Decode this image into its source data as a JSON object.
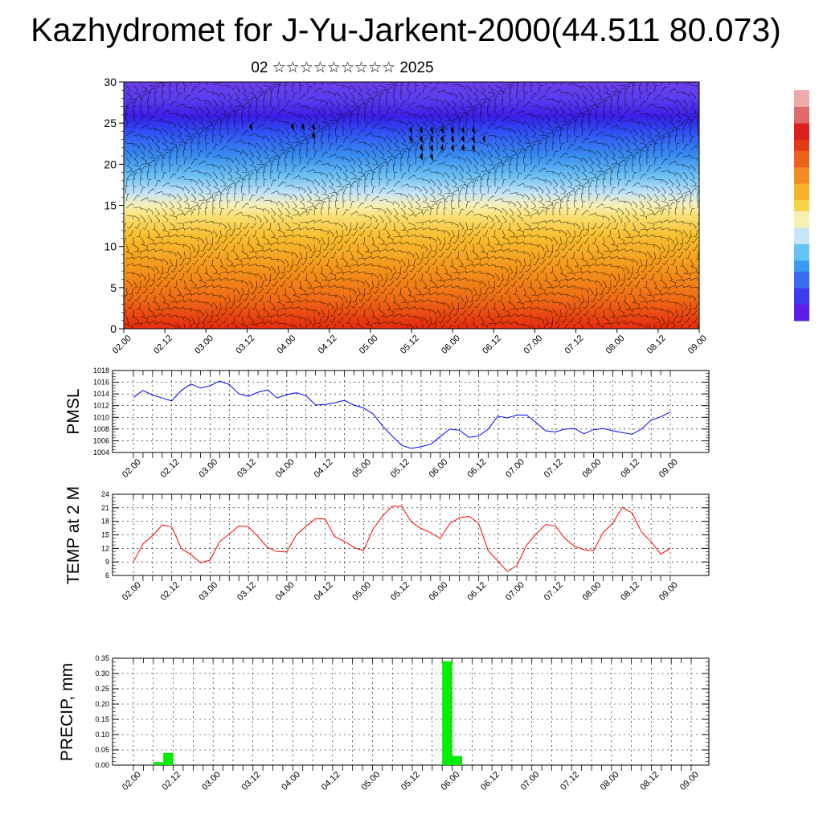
{
  "title": "Kazhydromet for J-Yu-Jarkent-2000(44.511 80.073)",
  "subtitle": "02 ☆☆☆☆☆☆☆☆☆ 2025",
  "time_ticks": [
    "02.00",
    "02.12",
    "03.00",
    "03.12",
    "04.00",
    "04.12",
    "05.00",
    "05.12",
    "06.00",
    "06.12",
    "07.00",
    "07.12",
    "08.00",
    "08.12",
    "09.00"
  ],
  "colorbar": {
    "colors_bottom_to_top": [
      "#5a1ee8",
      "#4a3cf0",
      "#3c63f2",
      "#3a8cf0",
      "#36aef0",
      "#7fd0f4",
      "#c8e8f8",
      "#f5f0a0",
      "#f8d84a",
      "#f6b92a",
      "#f39623",
      "#ee6f1c",
      "#e84a18",
      "#dc2020",
      "#e88a8a"
    ]
  },
  "chart_data": [
    {
      "type": "heatmap",
      "title": "",
      "ylim": [
        0,
        30
      ],
      "yticks": [
        0,
        5,
        10,
        15,
        20,
        25,
        30
      ],
      "xticks": [
        "02.00",
        "02.12",
        "03.00",
        "03.12",
        "04.00",
        "04.12",
        "05.00",
        "05.12",
        "06.00",
        "06.12",
        "07.00",
        "07.12",
        "08.00",
        "08.12",
        "09.00"
      ],
      "description_of_field": "temperature-like field, warm (red/orange) near level 0, yellow near 14-16, blue/purple above 20, with wind barbs"
    },
    {
      "type": "line",
      "ylabel": "PMSL",
      "ylim": [
        1004,
        1018
      ],
      "yticks": [
        1004,
        1006,
        1008,
        1010,
        1012,
        1014,
        1016,
        1018
      ],
      "x": [
        "02.00",
        "02.03",
        "02.06",
        "02.09",
        "02.12",
        "02.15",
        "02.18",
        "02.21",
        "03.00",
        "03.03",
        "03.06",
        "03.09",
        "03.12",
        "03.15",
        "03.18",
        "03.21",
        "04.00",
        "04.03",
        "04.06",
        "04.09",
        "04.12",
        "04.15",
        "04.18",
        "04.21",
        "05.00",
        "05.03",
        "05.06",
        "05.09",
        "05.12",
        "05.15",
        "05.18",
        "05.21",
        "06.00",
        "06.03",
        "06.06",
        "06.09",
        "06.12",
        "06.15",
        "06.18",
        "06.21",
        "07.00",
        "07.03",
        "07.06",
        "07.09",
        "07.12",
        "07.15",
        "07.18",
        "07.21",
        "08.00",
        "08.03",
        "08.06",
        "08.09",
        "08.12",
        "08.15",
        "08.18",
        "08.21",
        "09.00"
      ],
      "series": [
        {
          "color": "#0000ff",
          "values": [
            1013.4,
            1014.6,
            1013.8,
            1013.3,
            1012.8,
            1014.6,
            1015.7,
            1015.0,
            1015.4,
            1016.2,
            1015.6,
            1014.0,
            1013.6,
            1014.3,
            1014.7,
            1013.3,
            1013.9,
            1014.2,
            1013.7,
            1012.1,
            1012.2,
            1012.5,
            1012.9,
            1012.1,
            1011.6,
            1010.6,
            1008.5,
            1006.8,
            1005.2,
            1004.7,
            1005.0,
            1005.4,
            1006.7,
            1008.0,
            1007.8,
            1006.6,
            1006.8,
            1008.0,
            1010.2,
            1009.9,
            1010.4,
            1010.4,
            1009.1,
            1007.7,
            1007.5,
            1008.0,
            1008.1,
            1007.2,
            1007.9,
            1008.1,
            1007.7,
            1007.4,
            1007.1,
            1008.0,
            1009.5,
            1010.1,
            1010.9
          ]
        }
      ]
    },
    {
      "type": "line",
      "ylabel": "TEMP at 2 M",
      "ylim": [
        6,
        24
      ],
      "yticks": [
        6,
        9,
        12,
        15,
        18,
        21,
        24
      ],
      "x": [
        "02.00",
        "02.03",
        "02.06",
        "02.09",
        "02.12",
        "02.15",
        "02.18",
        "02.21",
        "03.00",
        "03.03",
        "03.06",
        "03.09",
        "03.12",
        "03.15",
        "03.18",
        "03.21",
        "04.00",
        "04.03",
        "04.06",
        "04.09",
        "04.12",
        "04.15",
        "04.18",
        "04.21",
        "05.00",
        "05.03",
        "05.06",
        "05.09",
        "05.12",
        "05.15",
        "05.18",
        "05.21",
        "06.00",
        "06.03",
        "06.06",
        "06.09",
        "06.12",
        "06.15",
        "06.18",
        "06.21",
        "07.00",
        "07.03",
        "07.06",
        "07.09",
        "07.12",
        "07.15",
        "07.18",
        "07.21",
        "08.00",
        "08.03",
        "08.06",
        "08.09",
        "08.12",
        "08.15",
        "08.18",
        "08.21",
        "09.00"
      ],
      "series": [
        {
          "color": "#ff0000",
          "values": [
            9.0,
            13.0,
            14.8,
            17.2,
            16.8,
            12.0,
            10.6,
            8.8,
            9.4,
            13.5,
            15.2,
            17.0,
            16.8,
            14.6,
            12.2,
            11.3,
            11.2,
            15.0,
            16.9,
            18.6,
            18.5,
            14.6,
            13.6,
            12.2,
            11.5,
            16.3,
            19.2,
            21.4,
            21.3,
            17.8,
            16.4,
            15.5,
            14.2,
            17.5,
            18.8,
            19.1,
            17.6,
            11.5,
            9.2,
            6.9,
            8.2,
            12.7,
            15.2,
            17.3,
            17.0,
            14.2,
            12.5,
            11.7,
            11.5,
            15.5,
            17.6,
            21.1,
            19.9,
            15.6,
            13.5,
            10.7,
            12.0
          ]
        }
      ]
    },
    {
      "type": "bar",
      "ylabel": "PRECIP, mm",
      "ylim": [
        0,
        0.35
      ],
      "yticks": [
        "0.00",
        "0.05",
        "0.10",
        "0.15",
        "0.20",
        "0.25",
        "0.30",
        "0.35"
      ],
      "bar_color": "#00ee00",
      "bars": [
        {
          "x": "02.09",
          "value": 0.01
        },
        {
          "x": "02.12",
          "value": 0.04
        },
        {
          "x": "06.00",
          "value": 0.34
        },
        {
          "x": "06.03",
          "value": 0.03
        }
      ]
    }
  ]
}
